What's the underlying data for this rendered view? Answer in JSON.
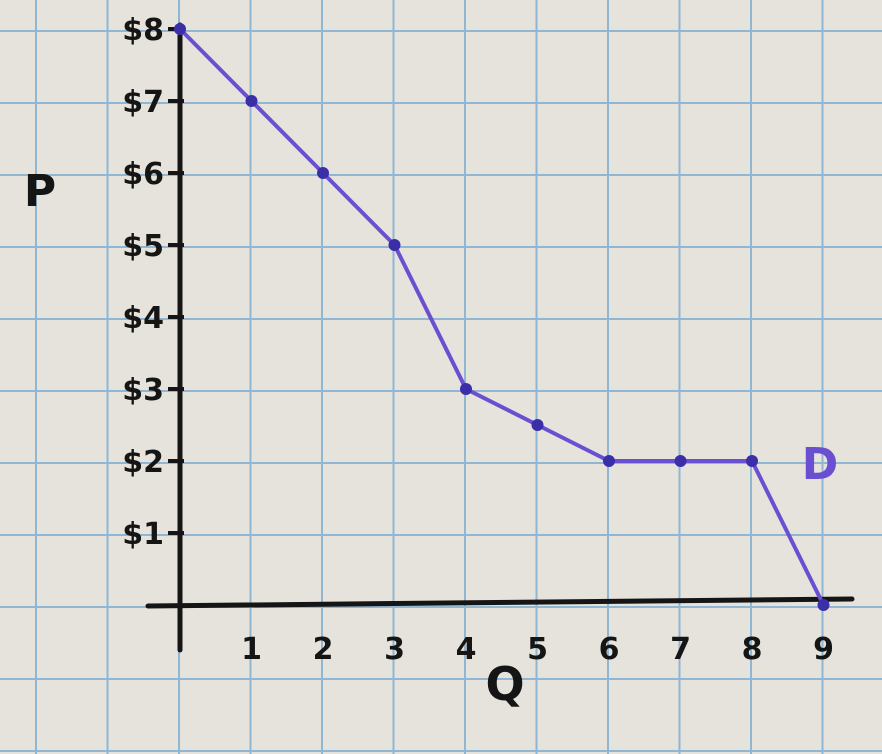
{
  "colors": {
    "paper": "#e6e3dd",
    "grid": "#8fb6d2",
    "ink": "#151515",
    "curve": "#6a4fd0",
    "curve_point": "#3a2fa8"
  },
  "chart_data": {
    "type": "line",
    "title": "",
    "xlabel": "Q",
    "ylabel": "P",
    "x_ticks": [
      "1",
      "2",
      "3",
      "4",
      "5",
      "6",
      "7",
      "8",
      "9"
    ],
    "y_ticks": [
      "$1",
      "$2",
      "$3",
      "$4",
      "$5",
      "$6",
      "$7",
      "$8"
    ],
    "xlim": [
      0,
      9
    ],
    "ylim": [
      0,
      8
    ],
    "grid": true,
    "series": [
      {
        "name": "D",
        "x": [
          0,
          1,
          2,
          3,
          4,
          5,
          6,
          7,
          8,
          9
        ],
        "y": [
          8,
          7,
          6,
          5,
          3,
          2.5,
          2,
          2,
          2,
          0
        ]
      }
    ]
  }
}
